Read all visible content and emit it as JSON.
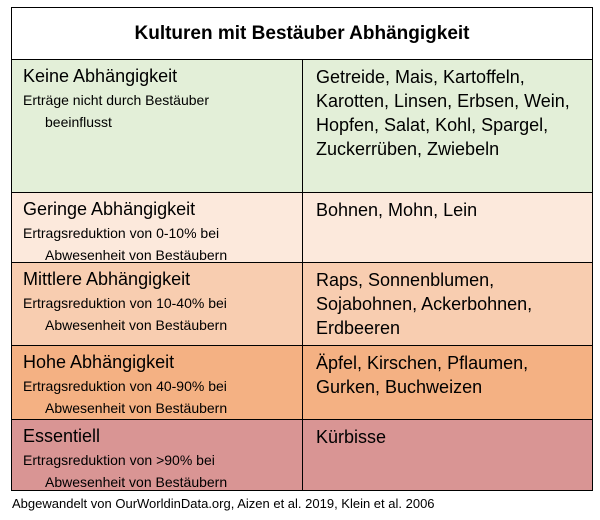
{
  "table": {
    "title": "Kulturen mit Bestäuber Abhängigkeit",
    "rows": [
      {
        "level": "Keine Abhängigkeit",
        "desc_line1": "Erträge nicht durch Bestäuber",
        "desc_line2": "beeinflusst",
        "crops": "Getreide, Mais, Kartoffeln, Karotten, Linsen, Erbsen, Wein, Hopfen, Salat, Kohl, Spargel, Zuckerrüben, Zwiebeln",
        "color": "#e3efd8"
      },
      {
        "level": "Geringe Abhängigkeit",
        "desc_line1": "Ertragsreduktion von 0-10% bei",
        "desc_line2": "Abwesenheit von Bestäubern",
        "crops": "Bohnen, Mohn, Lein",
        "color": "#fce9dc"
      },
      {
        "level": "Mittlere Abhängigkeit",
        "desc_line1": "Ertragsreduktion von 10-40% bei",
        "desc_line2": "Abwesenheit von Bestäubern",
        "crops": "Raps, Sonnenblumen, Sojabohnen, Ackerbohnen, Erdbeeren",
        "color": "#f8cdb0"
      },
      {
        "level": "Hohe Abhängigkeit",
        "desc_line1": "Ertragsreduktion von 40-90% bei",
        "desc_line2": "Abwesenheit von Bestäubern",
        "crops": "Äpfel, Kirschen, Pflaumen, Gurken, Buchweizen",
        "color": "#f4b183"
      },
      {
        "level": "Essentiell",
        "desc_line1": "Ertragsreduktion von >90% bei",
        "desc_line2": "Abwesenheit von Bestäubern",
        "crops": "Kürbisse",
        "color": "#d99594"
      }
    ]
  },
  "footnote": "Abgewandelt von OurWorldinData.org, Aizen et al. 2019, Klein et al. 2006"
}
